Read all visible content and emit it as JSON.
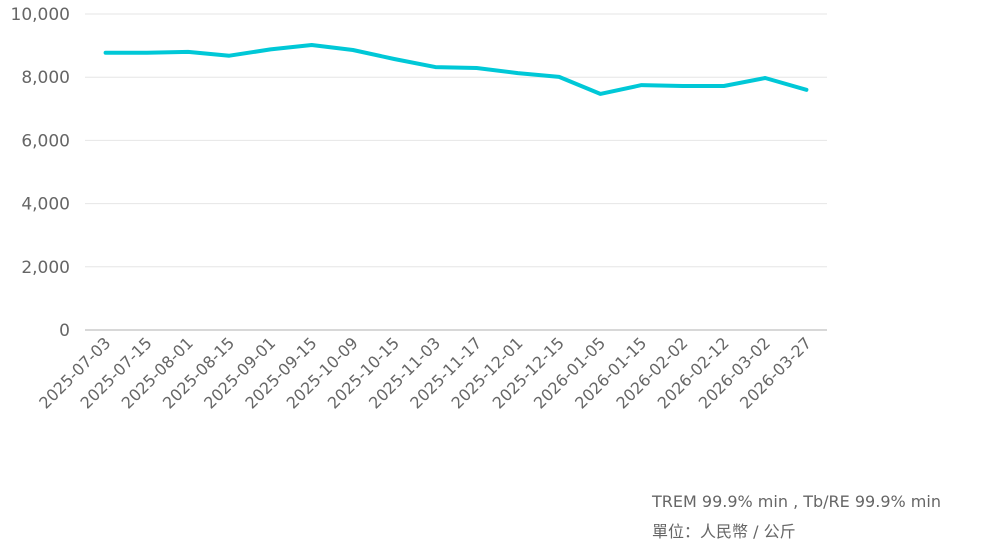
{
  "chart_data": {
    "type": "line",
    "title": "",
    "xlabel": "",
    "ylabel": "",
    "ylim": [
      0,
      10000
    ],
    "yticks": [
      0,
      2000,
      4000,
      6000,
      8000,
      10000
    ],
    "ytick_labels": [
      "0",
      "2,000",
      "4,000",
      "6,000",
      "8,000",
      "10,000"
    ],
    "grid": true,
    "legend": null,
    "categories": [
      "2025-07-03",
      "2025-07-15",
      "2025-08-01",
      "2025-08-15",
      "2025-09-01",
      "2025-09-15",
      "2025-10-09",
      "2025-10-15",
      "2025-11-03",
      "2025-11-17",
      "2025-12-01",
      "2025-12-15",
      "2026-01-05",
      "2026-01-15",
      "2026-02-02",
      "2026-02-12",
      "2026-03-02",
      "2026-03-27"
    ],
    "series": [
      {
        "name": "TREM 99.9% min , Tb/RE 99.9% min",
        "color": "#00c8d7",
        "values": [
          8775,
          8775,
          8800,
          8680,
          8880,
          9020,
          8860,
          8575,
          8320,
          8290,
          8130,
          8010,
          7470,
          7750,
          7720,
          7720,
          7975,
          7600
        ]
      }
    ]
  },
  "footnote": {
    "line1": "TREM 99.9% min , Tb/RE 99.9% min",
    "line2": "單位：人民幣 / 公斤"
  }
}
